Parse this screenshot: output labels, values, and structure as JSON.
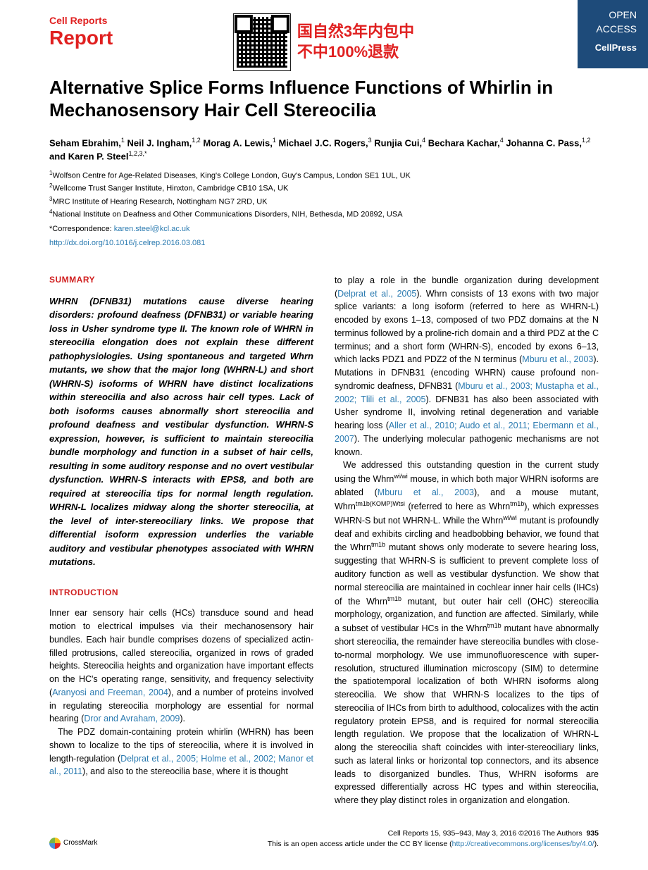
{
  "brand": {
    "journal": "Cell Reports",
    "type": "Report"
  },
  "qr": {
    "line1": "国自然3年内包中",
    "line2": "不中100%退款"
  },
  "openAccess": {
    "oa1": "OPEN",
    "oa2": "ACCESS",
    "press": "CellPress"
  },
  "title": "Alternative Splice Forms Influence Functions of Whirlin in Mechanosensory Hair Cell Stereocilia",
  "authors": [
    {
      "name": "Seham Ebrahim,",
      "sup": "1"
    },
    {
      "name": " Neil J. Ingham,",
      "sup": "1,2"
    },
    {
      "name": " Morag A. Lewis,",
      "sup": "1"
    },
    {
      "name": " Michael J.C. Rogers,",
      "sup": "3"
    },
    {
      "name": " Runjia Cui,",
      "sup": "4"
    },
    {
      "name": " Bechara Kachar,",
      "sup": "4"
    },
    {
      "name": " Johanna C. Pass,",
      "sup": "1,2"
    },
    {
      "name": " and Karen P. Steel",
      "sup": "1,2,3,*"
    }
  ],
  "affiliations": [
    {
      "n": "1",
      "text": "Wolfson Centre for Age-Related Diseases, King's College London, Guy's Campus, London SE1 1UL, UK"
    },
    {
      "n": "2",
      "text": "Wellcome Trust Sanger Institute, Hinxton, Cambridge CB10 1SA, UK"
    },
    {
      "n": "3",
      "text": "MRC Institute of Hearing Research, Nottingham NG7 2RD, UK"
    },
    {
      "n": "4",
      "text": "National Institute on Deafness and Other Communications Disorders, NIH, Bethesda, MD 20892, USA"
    }
  ],
  "correspondence": {
    "label": "*Correspondence: ",
    "email": "karen.steel@kcl.ac.uk"
  },
  "doi": "http://dx.doi.org/10.1016/j.celrep.2016.03.081",
  "sections": {
    "summary": "SUMMARY",
    "intro": "INTRODUCTION"
  },
  "summary_text": "WHRN (DFNB31) mutations cause diverse hearing disorders: profound deafness (DFNB31) or variable hearing loss in Usher syndrome type II. The known role of WHRN in stereocilia elongation does not explain these different pathophysiologies. Using spontaneous and targeted Whrn mutants, we show that the major long (WHRN-L) and short (WHRN-S) isoforms of WHRN have distinct localizations within stereocilia and also across hair cell types. Lack of both isoforms causes abnormally short stereocilia and profound deafness and vestibular dysfunction. WHRN-S expression, however, is sufficient to maintain stereocilia bundle morphology and function in a subset of hair cells, resulting in some auditory response and no overt vestibular dysfunction. WHRN-S interacts with EPS8, and both are required at stereocilia tips for normal length regulation. WHRN-L localizes midway along the shorter stereocilia, at the level of inter-stereociliary links. We propose that differential isoform expression underlies the variable auditory and vestibular phenotypes associated with WHRN mutations.",
  "intro_p1_a": "Inner ear sensory hair cells (HCs) transduce sound and head motion to electrical impulses via their mechanosensory hair bundles. Each hair bundle comprises dozens of specialized actin-filled protrusions, called stereocilia, organized in rows of graded heights. Stereocilia heights and organization have important effects on the HC's operating range, sensitivity, and frequency selectivity (",
  "intro_p1_link1": "Aranyosi and Freeman, 2004",
  "intro_p1_b": "), and a number of proteins involved in regulating stereocilia morphology are essential for normal hearing (",
  "intro_p1_link2": "Dror and Avraham, 2009",
  "intro_p1_c": ").",
  "intro_p2_a": "The PDZ domain-containing protein whirlin (WHRN) has been shown to localize to the tips of stereocilia, where it is involved in length-regulation (",
  "intro_p2_link1": "Delprat et al., 2005; Holme et al., 2002; Manor et al., 2011",
  "intro_p2_b": "), and also to the stereocilia base, where it is thought ",
  "col2_p1_a": "to play a role in the bundle organization during development (",
  "col2_p1_link1": "Delprat et al., 2005",
  "col2_p1_b": "). Whrn consists of 13 exons with two major splice variants: a long isoform (referred to here as WHRN-L) encoded by exons 1–13, composed of two PDZ domains at the N terminus followed by a proline-rich domain and a third PDZ at the C terminus; and a short form (WHRN-S), encoded by exons 6–13, which lacks PDZ1 and PDZ2 of the N terminus (",
  "col2_p1_link2": "Mburu et al., 2003",
  "col2_p1_c": "). Mutations in DFNB31 (encoding WHRN) cause profound non-syndromic deafness, DFNB31 (",
  "col2_p1_link3": "Mburu et al., 2003; Mustapha et al., 2002; Tlili et al., 2005",
  "col2_p1_d": "). DFNB31 has also been associated with Usher syndrome II, involving retinal degeneration and variable hearing loss (",
  "col2_p1_link4": "Aller et al., 2010; Audo et al., 2011; Ebermann et al., 2007",
  "col2_p1_e": "). The underlying molecular pathogenic mechanisms are not known.",
  "col2_p2_a": "We addressed this outstanding question in the current study using the Whrn",
  "col2_p2_sup1": "wi/wi",
  "col2_p2_b": " mouse, in which both major WHRN isoforms are ablated (",
  "col2_p2_link1": "Mburu et al., 2003",
  "col2_p2_c": "), and a mouse mutant, Whrn",
  "col2_p2_sup2": "tm1b(KOMP)Wtsi",
  "col2_p2_d": " (referred to here as Whrn",
  "col2_p2_sup3": "tm1b",
  "col2_p2_e": "), which expresses WHRN-S but not WHRN-L. While the Whrn",
  "col2_p2_sup4": "wi/wi",
  "col2_p2_f": " mutant is profoundly deaf and exhibits circling and headbobbing behavior, we found that the Whrn",
  "col2_p2_sup5": "tm1b",
  "col2_p2_g": " mutant shows only moderate to severe hearing loss, suggesting that WHRN-S is sufficient to prevent complete loss of auditory function as well as vestibular dysfunction. We show that normal stereocilia are maintained in cochlear inner hair cells (IHCs) of the Whrn",
  "col2_p2_sup6": "tm1b",
  "col2_p2_h": " mutant, but outer hair cell (OHC) stereocilia morphology, organization, and function are affected. Similarly, while a subset of vestibular HCs in the Whrn",
  "col2_p2_sup7": "tm1b",
  "col2_p2_i": " mutant have abnormally short stereocilia, the remainder have stereocilia bundles with close-to-normal morphology. We use immunofluorescence with super-resolution, structured illumination microscopy (SIM) to determine the spatiotemporal localization of both WHRN isoforms along stereocilia. We show that WHRN-S localizes to the tips of stereocilia of IHCs from birth to adulthood, colocalizes with the actin regulatory protein EPS8, and is required for normal stereocilia length regulation. We propose that the localization of WHRN-L along the stereocilia shaft coincides with inter-stereociliary links, such as lateral links or horizontal top connectors, and its absence leads to disorganized bundles. Thus, WHRN isoforms are expressed differentially across HC types and within stereocilia, where they play distinct roles in organization and elongation.",
  "footer": {
    "crossmark": "CrossMark",
    "citation": "Cell Reports 15, 935–943, May 3, 2016 ©2016 The Authors",
    "page": "935",
    "license_a": "This is an open access article under the CC BY license (",
    "license_link": "http://creativecommons.org/licenses/by/4.0/",
    "license_b": ")."
  },
  "colors": {
    "brand_red": "#e02020",
    "link_blue": "#2a7ab0",
    "header_blue": "#1e4b7a"
  }
}
